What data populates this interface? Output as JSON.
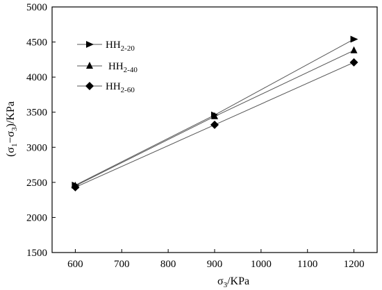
{
  "chart_data": {
    "type": "line",
    "x": [
      600,
      900,
      1200
    ],
    "xlabel": {
      "main": "σ",
      "sub": "3",
      "unit": "/KPa"
    },
    "ylabel": {
      "pre": "(σ",
      "sub1": "1",
      "mid": "−σ",
      "sub2": "3",
      "post": ")/KPa"
    },
    "xlim": [
      550,
      1250
    ],
    "ylim": [
      1500,
      5000
    ],
    "xticks": [
      600,
      700,
      800,
      900,
      1000,
      1100,
      1200
    ],
    "yticks": [
      1500,
      2000,
      2500,
      3000,
      3500,
      4000,
      4500,
      5000
    ],
    "grid": false,
    "legend_position": "upper-left",
    "series": [
      {
        "name_main": "HH",
        "name_sub": "2-20",
        "marker": "triangle-right",
        "values": [
          2460,
          3460,
          4540
        ]
      },
      {
        "name_main": "HH",
        "name_sub": "2-40",
        "marker": "triangle-up",
        "values": [
          2450,
          3440,
          4380
        ]
      },
      {
        "name_main": "HH",
        "name_sub": "2-60",
        "marker": "diamond",
        "values": [
          2430,
          3320,
          4210
        ]
      }
    ]
  }
}
